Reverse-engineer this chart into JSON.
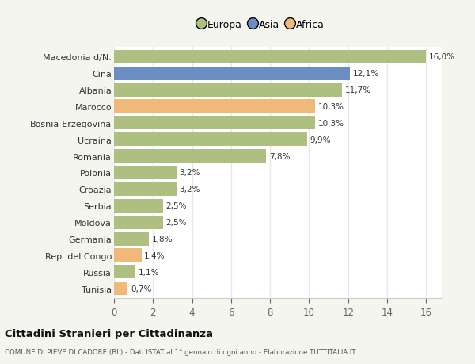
{
  "categories": [
    "Tunisia",
    "Russia",
    "Rep. del Congo",
    "Germania",
    "Moldova",
    "Serbia",
    "Croazia",
    "Polonia",
    "Romania",
    "Ucraina",
    "Bosnia-Erzegovina",
    "Marocco",
    "Albania",
    "Cina",
    "Macedonia d/N."
  ],
  "values": [
    0.7,
    1.1,
    1.4,
    1.8,
    2.5,
    2.5,
    3.2,
    3.2,
    7.8,
    9.9,
    10.3,
    10.3,
    11.7,
    12.1,
    16.0
  ],
  "continents": [
    "Africa",
    "Europa",
    "Africa",
    "Europa",
    "Europa",
    "Europa",
    "Europa",
    "Europa",
    "Europa",
    "Europa",
    "Europa",
    "Africa",
    "Europa",
    "Asia",
    "Europa"
  ],
  "colors": {
    "Europa": "#adc080",
    "Asia": "#6b8dc4",
    "Africa": "#f0b97a"
  },
  "legend_labels": [
    "Europa",
    "Asia",
    "Africa"
  ],
  "legend_colors": [
    "#adc080",
    "#6b8dc4",
    "#f0b97a"
  ],
  "labels": [
    "0,7%",
    "1,1%",
    "1,4%",
    "1,8%",
    "2,5%",
    "2,5%",
    "3,2%",
    "3,2%",
    "7,8%",
    "9,9%",
    "10,3%",
    "10,3%",
    "11,7%",
    "12,1%",
    "16,0%"
  ],
  "title": "Cittadini Stranieri per Cittadinanza",
  "subtitle": "COMUNE DI PIEVE DI CADORE (BL) - Dati ISTAT al 1° gennaio di ogni anno - Elaborazione TUTTITALIA.IT",
  "xlim": [
    0,
    16.8
  ],
  "xticks": [
    0,
    2,
    4,
    6,
    8,
    10,
    12,
    14,
    16
  ],
  "background_color": "#f5f5f0",
  "bar_background": "#ffffff",
  "grid_color": "#e8e8e8",
  "bar_height": 0.82
}
